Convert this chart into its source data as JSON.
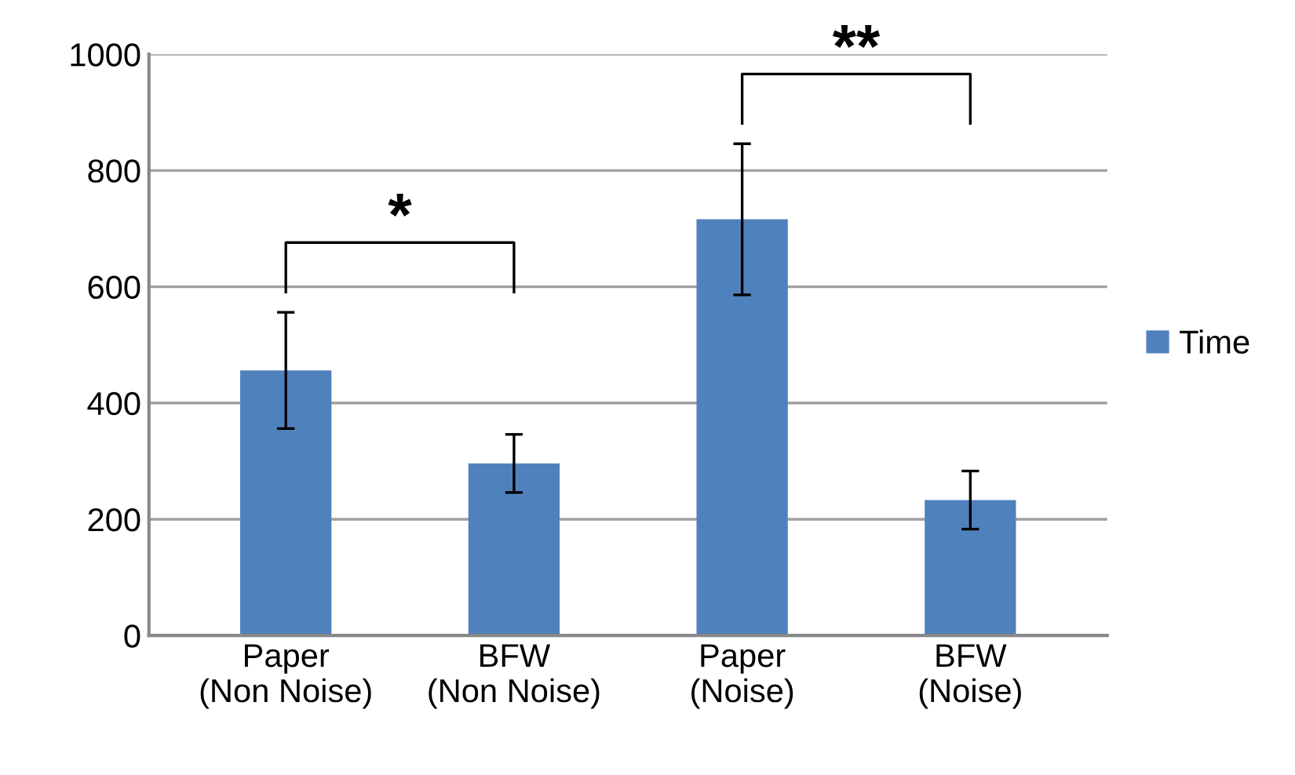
{
  "chart_data": {
    "type": "bar",
    "categories": [
      "Paper\n(Non Noise)",
      "BFW\n(Non Noise)",
      "Paper\n(Noise)",
      "BFW\n(Noise)"
    ],
    "series": [
      {
        "name": "Time",
        "color": "#4f81bd",
        "values": [
          456,
          296,
          716,
          233
        ],
        "errors": [
          100,
          50,
          130,
          50
        ]
      }
    ],
    "ylim": [
      0,
      1000
    ],
    "yticks": [
      0,
      200,
      400,
      600,
      800,
      1000
    ],
    "grid": "y",
    "legend": "right",
    "annotations": [
      "*",
      "**"
    ]
  }
}
